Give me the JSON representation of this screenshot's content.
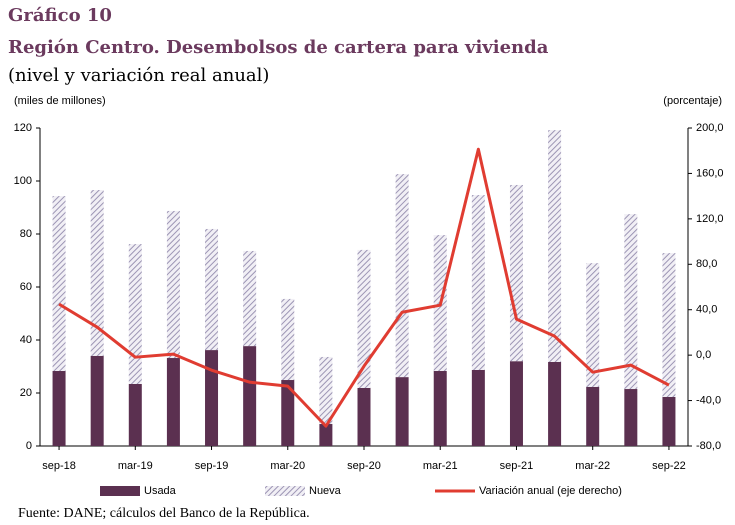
{
  "chart_data": {
    "type": "bar",
    "stacked": true,
    "title": "Gráfico 10",
    "subtitle": "Región Centro. Desembolsos de cartera para vivienda",
    "subtitle2": "(nivel y variación real anual)",
    "y_label": "(miles de millones)",
    "y2_label": "(porcentaje)",
    "source": "Fuente: DANE; cálculos del Banco de la República.",
    "categories": [
      "sep-18",
      null,
      "mar-19",
      null,
      "sep-19",
      null,
      "mar-20",
      null,
      "sep-20",
      null,
      "mar-21",
      null,
      "sep-21",
      null,
      "mar-22",
      null,
      "sep-22"
    ],
    "series": [
      {
        "name": "Usada",
        "color": "#5b3050",
        "type": "bar",
        "values": [
          28.3,
          34,
          23.4,
          33.2,
          36.2,
          37.7,
          24.9,
          8.3,
          21.9,
          26,
          28.3,
          28.7,
          32,
          31.7,
          22.3,
          21.5,
          18.5
        ]
      },
      {
        "name": "Nueva",
        "color": "#b9b3cc",
        "type": "bar",
        "hatch": true,
        "values": [
          66,
          62.6,
          52.8,
          55.5,
          45.7,
          35.9,
          30.6,
          25.3,
          52.1,
          76.6,
          51.3,
          66,
          66.5,
          87.5,
          46.7,
          66,
          54.3
        ]
      },
      {
        "name": "Variación anual (eje derecho)",
        "color": "#e03c31",
        "type": "line",
        "axis": "y2",
        "values": [
          44.9,
          24.6,
          -1.8,
          0.9,
          -13.2,
          -23.8,
          -27.3,
          -62.5,
          -9.7,
          37.8,
          44,
          181.3,
          31.7,
          16.7,
          -15,
          -8.8,
          -26.4
        ]
      }
    ],
    "ylim": [
      0,
      120
    ],
    "yticks": [
      0,
      20,
      40,
      60,
      80,
      100,
      120
    ],
    "y2lim": [
      -80,
      200
    ],
    "y2ticks": [
      {
        "value": -80,
        "label": "-80,0"
      },
      {
        "value": -40,
        "label": "-40,0"
      },
      {
        "value": 0,
        "label": "0,0"
      },
      {
        "value": 40,
        "label": "40,0"
      },
      {
        "value": 80,
        "label": "80,0"
      },
      {
        "value": 120,
        "label": "120,0"
      },
      {
        "value": 160,
        "label": "160,0"
      },
      {
        "value": 200,
        "label": "200,0"
      }
    ],
    "grid": false,
    "legend": "bottom"
  }
}
